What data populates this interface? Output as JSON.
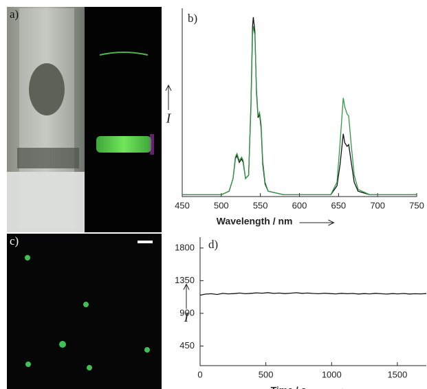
{
  "panels": [
    "a)",
    "b)",
    "c)",
    "d)"
  ],
  "chart_data": [
    {
      "type": "line",
      "x_label": "Wavelength / nm",
      "y_label": "I",
      "xlim": [
        450,
        750
      ],
      "xticks": [
        450,
        500,
        550,
        600,
        650,
        700,
        750
      ],
      "ylim": [
        0,
        1.05
      ],
      "x": [
        450,
        500,
        510,
        515,
        518,
        520,
        523,
        526,
        528,
        531,
        535,
        538,
        540,
        541,
        543,
        545,
        547,
        549,
        551,
        553,
        556,
        560,
        580,
        640,
        648,
        652,
        656,
        658,
        661,
        663,
        666,
        670,
        675,
        690,
        750
      ],
      "series": [
        {
          "color": "#111111",
          "values": [
            0.01,
            0.01,
            0.03,
            0.1,
            0.21,
            0.23,
            0.19,
            0.21,
            0.19,
            0.1,
            0.12,
            0.52,
            0.95,
            1.0,
            0.92,
            0.58,
            0.44,
            0.46,
            0.38,
            0.18,
            0.07,
            0.03,
            0.01,
            0.01,
            0.06,
            0.18,
            0.35,
            0.3,
            0.28,
            0.29,
            0.2,
            0.08,
            0.03,
            0.01,
            0.01
          ]
        },
        {
          "color": "#2e9a45",
          "values": [
            0.01,
            0.01,
            0.03,
            0.1,
            0.22,
            0.24,
            0.2,
            0.22,
            0.2,
            0.1,
            0.12,
            0.5,
            0.9,
            0.95,
            0.9,
            0.6,
            0.45,
            0.47,
            0.4,
            0.2,
            0.08,
            0.03,
            0.01,
            0.01,
            0.08,
            0.3,
            0.55,
            0.5,
            0.46,
            0.45,
            0.3,
            0.12,
            0.04,
            0.01,
            0.01
          ]
        }
      ]
    },
    {
      "type": "line",
      "x_label": "Time / s",
      "y_label": "I",
      "xlim": [
        0,
        1720
      ],
      "xticks": [
        0,
        500,
        1000,
        1500
      ],
      "ylim": [
        180,
        1950
      ],
      "yticks": [
        450,
        900,
        1350,
        1800
      ],
      "x": [
        0,
        43,
        86,
        129,
        172,
        215,
        258,
        301,
        344,
        387,
        430,
        473,
        516,
        559,
        602,
        645,
        688,
        731,
        774,
        817,
        860,
        903,
        946,
        989,
        1032,
        1075,
        1118,
        1161,
        1204,
        1247,
        1290,
        1333,
        1376,
        1419,
        1462,
        1505,
        1548,
        1591,
        1634,
        1677,
        1720
      ],
      "series": [
        {
          "color": "#111111",
          "values": [
            1150,
            1165,
            1170,
            1160,
            1175,
            1168,
            1172,
            1180,
            1170,
            1176,
            1182,
            1178,
            1185,
            1175,
            1180,
            1172,
            1178,
            1184,
            1176,
            1180,
            1174,
            1170,
            1178,
            1172,
            1168,
            1176,
            1170,
            1174,
            1166,
            1172,
            1168,
            1176,
            1170,
            1165,
            1172,
            1168,
            1174,
            1166,
            1170,
            1168,
            1172
          ]
        }
      ]
    }
  ]
}
